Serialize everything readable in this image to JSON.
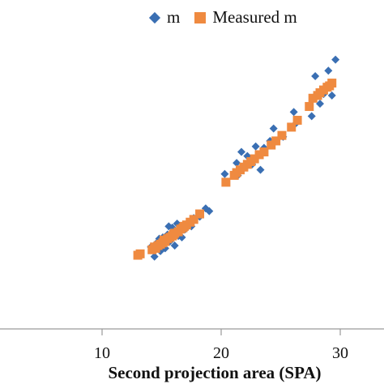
{
  "chart_data": {
    "type": "scatter",
    "title": "",
    "xlabel": "Second projection area (SPA)",
    "ylabel": "",
    "xlim": [
      0,
      33.5
    ],
    "x_ticks": [
      "10",
      "20",
      "30"
    ],
    "x_tick_values": [
      10,
      20,
      30
    ],
    "legend_position": "top",
    "series": [
      {
        "name": "m",
        "marker": "diamond",
        "color": "#3a6fb3",
        "points": [
          [
            13.1,
            5.6
          ],
          [
            14.1,
            6.2
          ],
          [
            14.4,
            5.5
          ],
          [
            14.6,
            6.5
          ],
          [
            14.9,
            5.9
          ],
          [
            15.1,
            6.9
          ],
          [
            15.3,
            6.1
          ],
          [
            15.5,
            7.1
          ],
          [
            15.7,
            6.6
          ],
          [
            15.9,
            7.6
          ],
          [
            16.1,
            6.3
          ],
          [
            16.3,
            7.9
          ],
          [
            16.5,
            7.3
          ],
          [
            16.7,
            6.9
          ],
          [
            17.0,
            7.5
          ],
          [
            17.3,
            8.0
          ],
          [
            17.5,
            7.7
          ],
          [
            17.7,
            8.3
          ],
          [
            18.2,
            8.4
          ],
          [
            18.7,
            9.0
          ],
          [
            19.0,
            8.8
          ],
          [
            14.3,
            6.0
          ],
          [
            15.0,
            6.4
          ],
          [
            15.6,
            7.7
          ],
          [
            16.0,
            7.4
          ],
          [
            14.8,
            6.8
          ],
          [
            16.4,
            7.0
          ],
          [
            20.3,
            11.5
          ],
          [
            21.3,
            12.3
          ],
          [
            21.4,
            11.4
          ],
          [
            21.7,
            13.1
          ],
          [
            22.0,
            12.0
          ],
          [
            22.2,
            12.8
          ],
          [
            22.6,
            12.2
          ],
          [
            22.9,
            13.5
          ],
          [
            23.3,
            11.8
          ],
          [
            23.6,
            13.4
          ],
          [
            24.1,
            13.9
          ],
          [
            24.4,
            14.8
          ],
          [
            25.2,
            14.2
          ],
          [
            26.1,
            16.0
          ],
          [
            26.3,
            15.2
          ],
          [
            27.6,
            15.7
          ],
          [
            27.8,
            17.1
          ],
          [
            28.3,
            16.6
          ],
          [
            28.6,
            17.3
          ],
          [
            29.2,
            17.9
          ],
          [
            29.0,
            19.0
          ],
          [
            29.6,
            19.8
          ],
          [
            27.9,
            18.6
          ],
          [
            29.3,
            17.2
          ]
        ]
      },
      {
        "name": "Measured m",
        "marker": "square",
        "color": "#ef8a40",
        "points": [
          [
            13.0,
            5.6
          ],
          [
            13.2,
            5.7
          ],
          [
            14.2,
            6.0
          ],
          [
            14.5,
            6.1
          ],
          [
            14.7,
            6.3
          ],
          [
            14.9,
            6.4
          ],
          [
            15.1,
            6.5
          ],
          [
            15.3,
            6.6
          ],
          [
            15.5,
            6.8
          ],
          [
            15.7,
            6.9
          ],
          [
            15.9,
            7.0
          ],
          [
            16.1,
            7.2
          ],
          [
            16.4,
            7.3
          ],
          [
            16.6,
            7.5
          ],
          [
            16.8,
            7.6
          ],
          [
            17.1,
            7.8
          ],
          [
            17.4,
            8.0
          ],
          [
            17.7,
            8.2
          ],
          [
            18.2,
            8.6
          ],
          [
            14.4,
            6.2
          ],
          [
            15.2,
            6.7
          ],
          [
            16.0,
            7.1
          ],
          [
            16.9,
            7.7
          ],
          [
            20.4,
            10.9
          ],
          [
            21.3,
            11.6
          ],
          [
            21.6,
            11.8
          ],
          [
            21.9,
            12.0
          ],
          [
            22.2,
            12.2
          ],
          [
            22.5,
            12.4
          ],
          [
            22.8,
            12.6
          ],
          [
            23.2,
            12.9
          ],
          [
            23.6,
            13.1
          ],
          [
            24.2,
            13.6
          ],
          [
            24.6,
            13.9
          ],
          [
            25.1,
            14.3
          ],
          [
            25.9,
            14.9
          ],
          [
            26.4,
            15.4
          ],
          [
            27.4,
            16.4
          ],
          [
            27.7,
            17.0
          ],
          [
            28.1,
            17.2
          ],
          [
            28.3,
            17.4
          ],
          [
            28.6,
            17.6
          ],
          [
            28.9,
            17.8
          ],
          [
            29.3,
            18.1
          ],
          [
            29.1,
            17.9
          ],
          [
            21.1,
            11.4
          ]
        ]
      }
    ]
  }
}
